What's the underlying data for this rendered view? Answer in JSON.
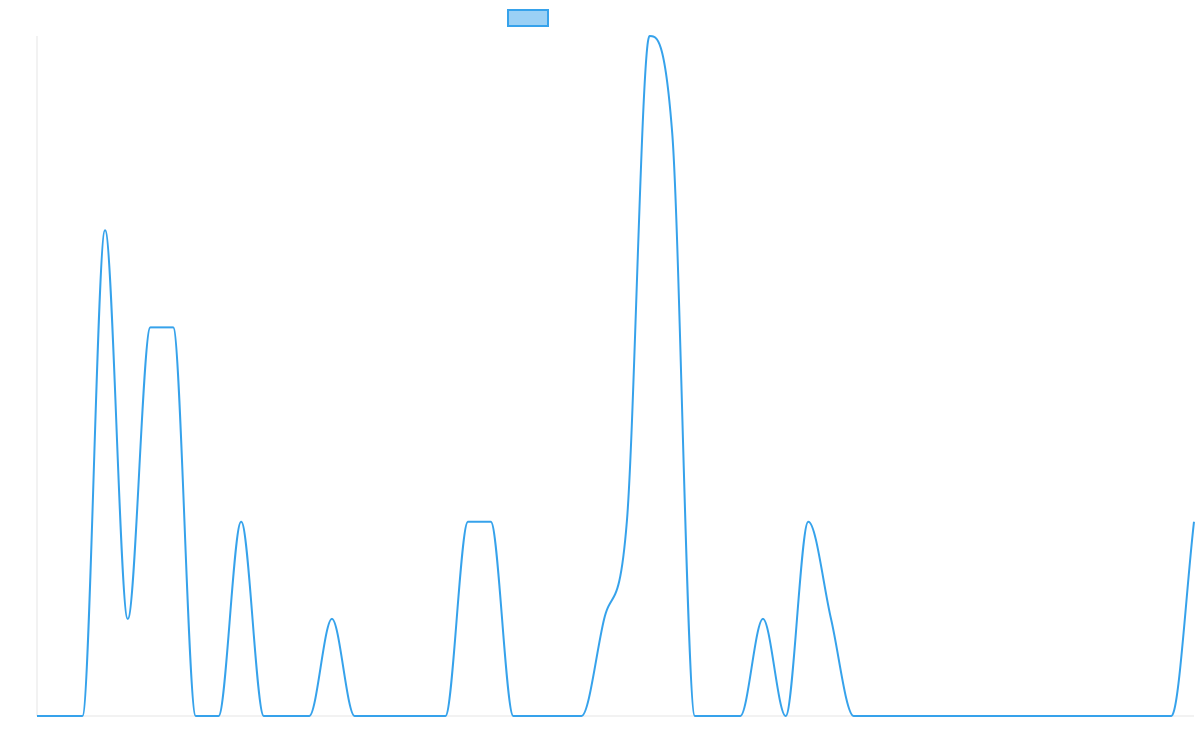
{
  "chart_data": {
    "type": "line",
    "title": "",
    "xlabel": "",
    "ylabel": "",
    "x": [
      0,
      1,
      2,
      3,
      4,
      5,
      6,
      7,
      8,
      9,
      10,
      11,
      12,
      13,
      14,
      15,
      16,
      17,
      18,
      19,
      20,
      21,
      22,
      23,
      24,
      25,
      26,
      27,
      28,
      29,
      30,
      31,
      32,
      33,
      34,
      35,
      36,
      37,
      38,
      39,
      40,
      41,
      42,
      43,
      44,
      45,
      46,
      47,
      48,
      49,
      50,
      51
    ],
    "ylim": [
      0,
      7
    ],
    "grid": false,
    "legend": "top",
    "series": [
      {
        "name": "",
        "color": "#36a2eb",
        "fill": "#9ad0f5",
        "values": [
          0,
          0,
          0,
          5,
          1,
          4,
          4,
          0,
          0,
          2,
          0,
          0,
          0,
          1,
          0,
          0,
          0,
          0,
          0,
          2,
          2,
          0,
          0,
          0,
          0,
          1,
          2,
          7,
          6,
          0,
          0,
          0,
          1,
          0,
          2,
          1,
          0,
          0,
          0,
          0,
          0,
          0,
          0,
          0,
          0,
          0,
          0,
          0,
          0,
          0,
          0,
          2
        ]
      }
    ]
  }
}
